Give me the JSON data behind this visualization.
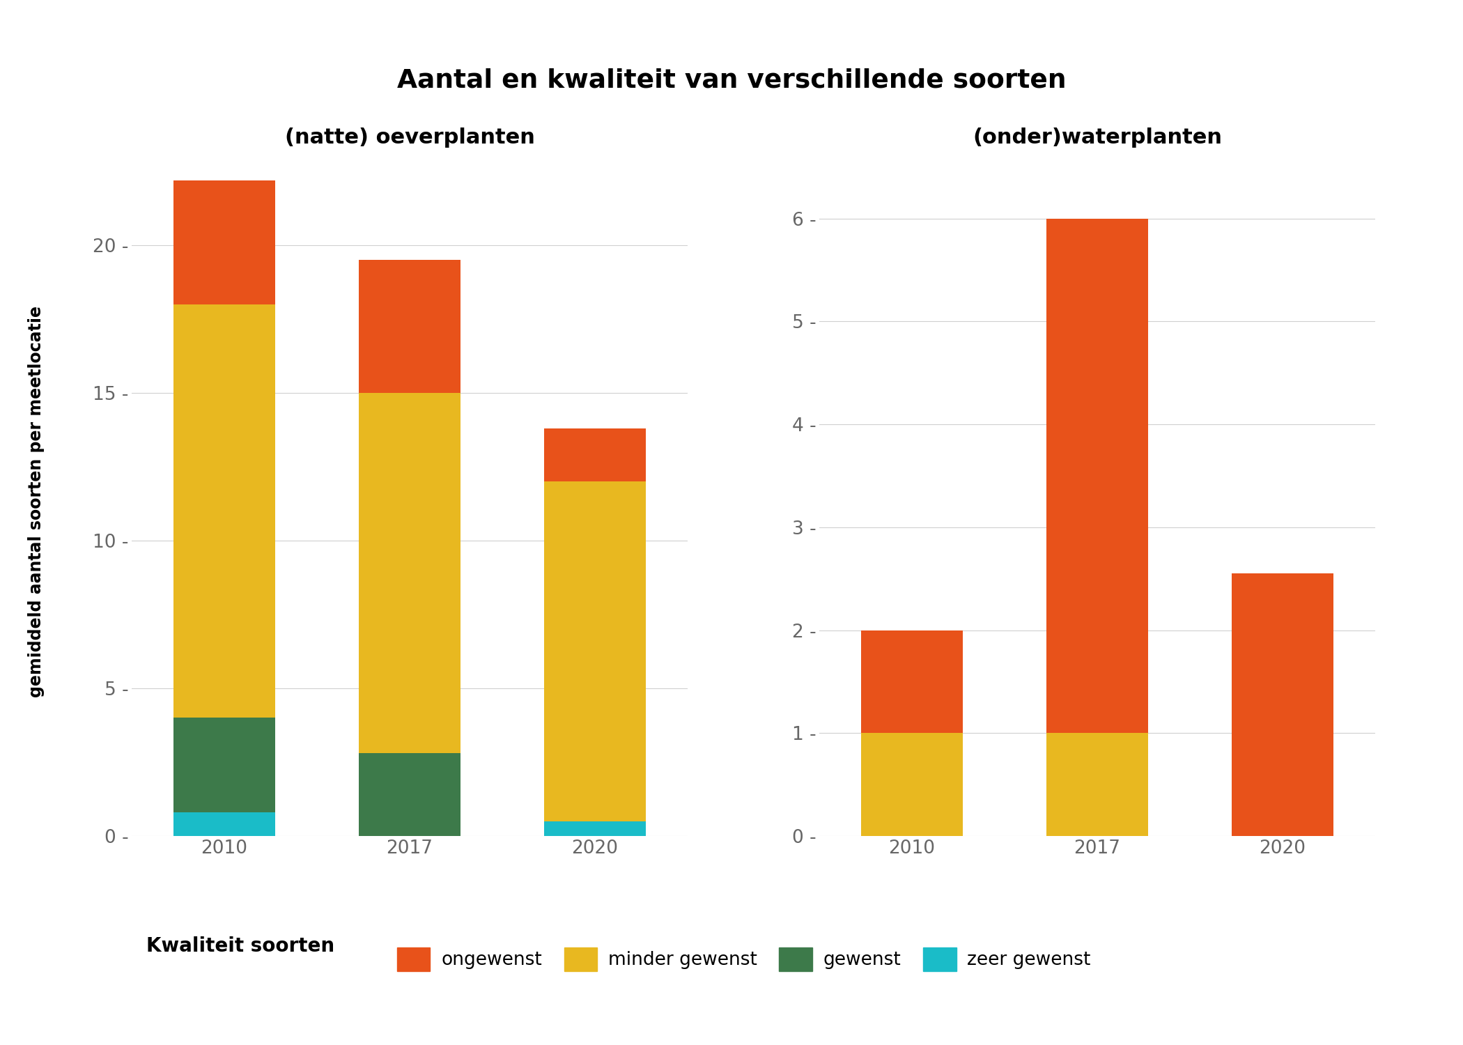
{
  "title": "Aantal en kwaliteit van verschillende soorten",
  "subtitle_left": "(natte) oeverplanten",
  "subtitle_right": "(onder)waterplanten",
  "ylabel": "gemiddeld aantal soorten per meetlocatie",
  "categories": [
    "2010",
    "2017",
    "2020"
  ],
  "legend_title": "Kwaliteit soorten",
  "legend_labels": [
    "ongewenst",
    "minder gewenst",
    "gewenst",
    "zeer gewenst"
  ],
  "colors": {
    "ongewenst": "#E8521A",
    "minder gewenst": "#E8B820",
    "gewenst": "#3D7A4A",
    "zeer gewenst": "#1ABCC8"
  },
  "left": {
    "zeer gewenst": [
      0.8,
      0.0,
      0.5
    ],
    "gewenst": [
      3.2,
      2.8,
      0.0
    ],
    "minder gewenst": [
      14.0,
      12.2,
      11.5
    ],
    "ongewenst": [
      4.2,
      4.5,
      1.8
    ]
  },
  "right": {
    "zeer gewenst": [
      0.0,
      0.0,
      0.0
    ],
    "gewenst": [
      0.0,
      0.0,
      0.0
    ],
    "minder gewenst": [
      1.0,
      1.0,
      0.0
    ],
    "ongewenst": [
      1.0,
      5.0,
      2.55
    ]
  },
  "left_ylim": [
    0,
    23
  ],
  "right_ylim": [
    0,
    6.6
  ],
  "left_yticks": [
    0,
    5,
    10,
    15,
    20
  ],
  "right_yticks": [
    0,
    1,
    2,
    3,
    4,
    5,
    6
  ],
  "background_color": "#ffffff",
  "grid_color": "#d0d0d0",
  "bar_width": 0.55
}
